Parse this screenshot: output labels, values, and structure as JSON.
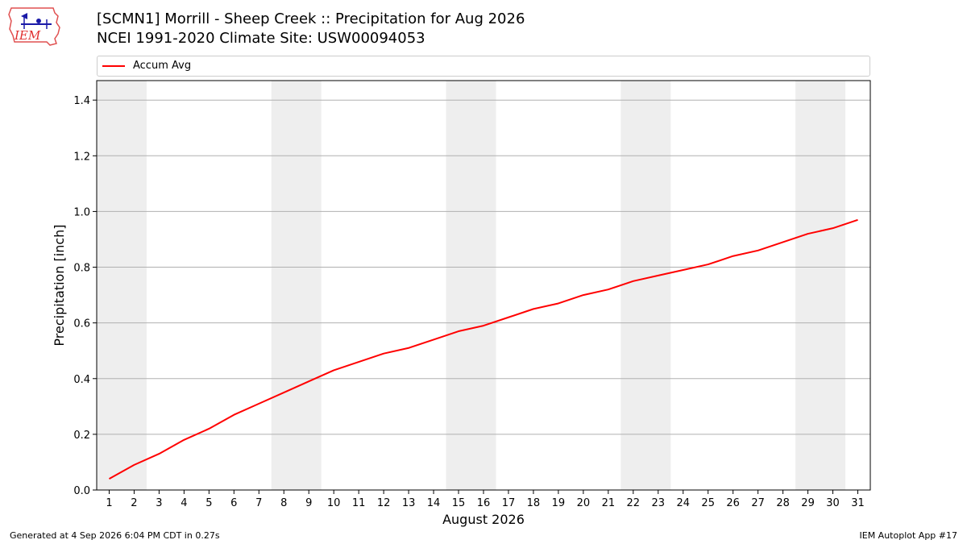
{
  "header": {
    "title": "[SCMN1] Morrill - Sheep Creek :: Precipitation for Aug 2026",
    "subtitle": "NCEI 1991-2020 Climate Site: USW00094053",
    "logo_text": "IEM"
  },
  "footer": {
    "generated": "Generated at 4 Sep 2026 6:04 PM CDT in 0.27s",
    "app": "IEM Autoplot App #17"
  },
  "chart_data": {
    "type": "line",
    "xlabel": "August 2026",
    "ylabel": "Precipitation [inch]",
    "ylim": [
      0,
      1.47
    ],
    "xlim": [
      0.5,
      31.5
    ],
    "grid": "horizontal",
    "legend_placement": "top",
    "y_ticks": [
      "0.0",
      "0.2",
      "0.4",
      "0.6",
      "0.8",
      "1.0",
      "1.2",
      "1.4"
    ],
    "y_tick_values": [
      0,
      0.2,
      0.4,
      0.6,
      0.8,
      1.0,
      1.2,
      1.4
    ],
    "x": [
      1,
      2,
      3,
      4,
      5,
      6,
      7,
      8,
      9,
      10,
      11,
      12,
      13,
      14,
      15,
      16,
      17,
      18,
      19,
      20,
      21,
      22,
      23,
      24,
      25,
      26,
      27,
      28,
      29,
      30,
      31
    ],
    "weekend_bands": [
      [
        1,
        2
      ],
      [
        8,
        9
      ],
      [
        15,
        16
      ],
      [
        22,
        23
      ],
      [
        29,
        30
      ]
    ],
    "series": [
      {
        "name": "Accum Avg",
        "color": "#ff0000",
        "values": [
          0.04,
          0.09,
          0.13,
          0.18,
          0.22,
          0.27,
          0.31,
          0.35,
          0.39,
          0.43,
          0.46,
          0.49,
          0.51,
          0.54,
          0.57,
          0.59,
          0.62,
          0.65,
          0.67,
          0.7,
          0.72,
          0.75,
          0.77,
          0.79,
          0.81,
          0.84,
          0.86,
          0.89,
          0.92,
          0.94,
          0.97
        ]
      }
    ]
  }
}
